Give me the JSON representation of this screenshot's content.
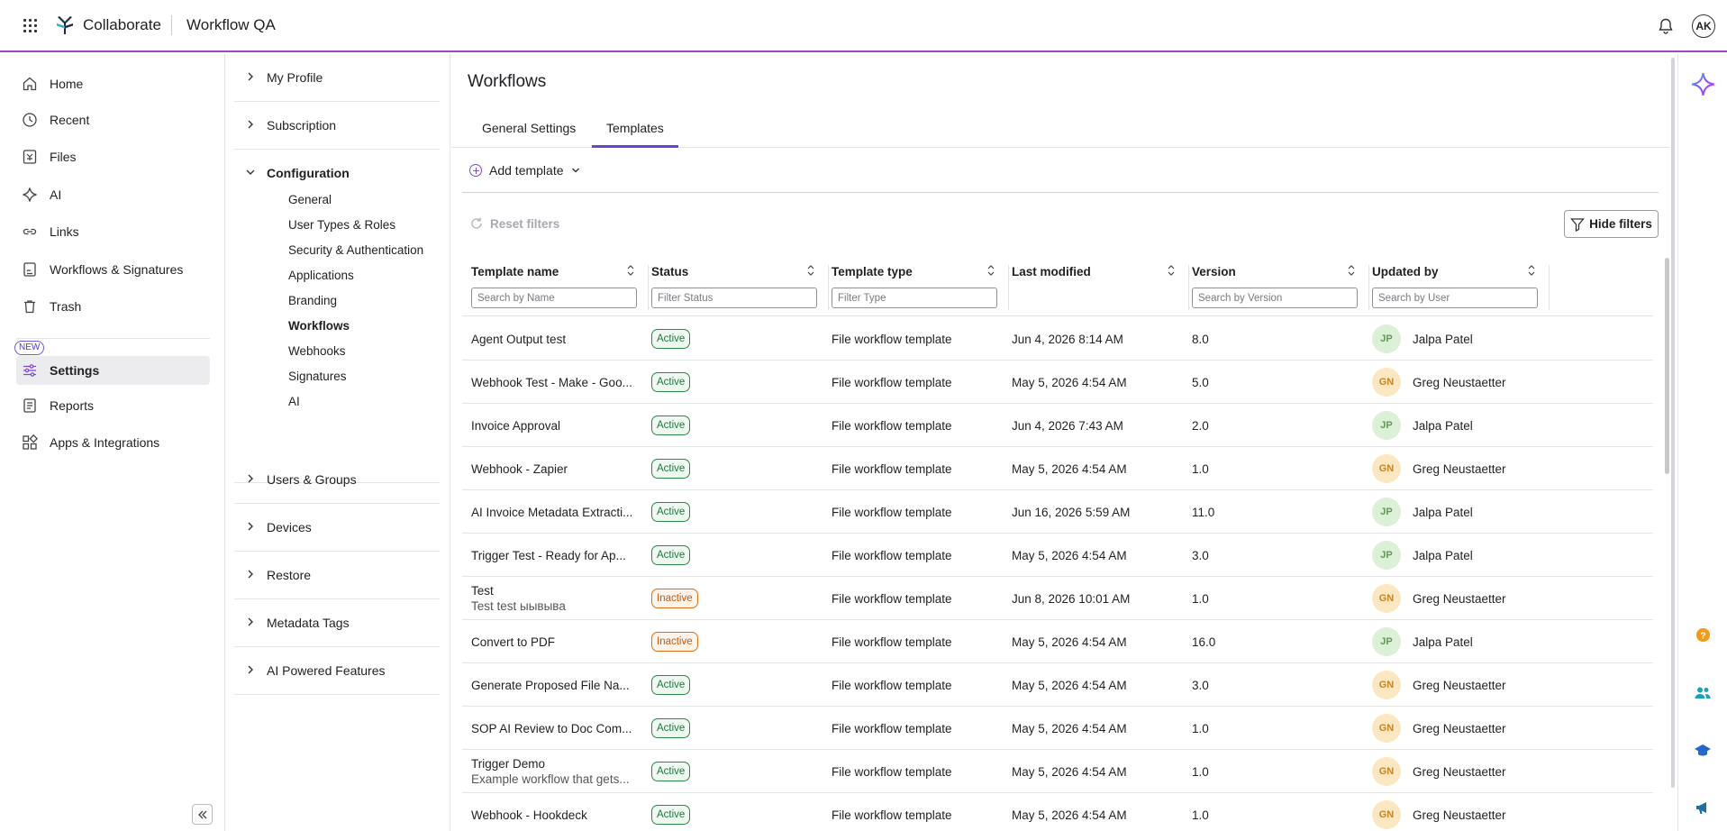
{
  "header": {
    "brand": "Collaborate",
    "workspace": "Workflow QA",
    "user_initials": "AK"
  },
  "leftnav": {
    "items": [
      {
        "label": "Home",
        "icon": "home-icon"
      },
      {
        "label": "Recent",
        "icon": "clock-icon"
      },
      {
        "label": "Files",
        "icon": "files-icon"
      },
      {
        "label": "AI",
        "icon": "sparkle-icon"
      },
      {
        "label": "Links",
        "icon": "link-icon"
      },
      {
        "label": "Workflows & Signatures",
        "icon": "workflow-icon"
      },
      {
        "label": "Trash",
        "icon": "trash-icon"
      },
      {
        "label": "Settings",
        "icon": "sliders-icon"
      },
      {
        "label": "Reports",
        "icon": "report-icon"
      },
      {
        "label": "Apps & Integrations",
        "icon": "apps-icon"
      }
    ],
    "new_badge": "NEW"
  },
  "subnav": {
    "sections": [
      {
        "label": "My Profile"
      },
      {
        "label": "Subscription"
      },
      {
        "label": "Configuration"
      },
      {
        "label": "Users & Groups"
      },
      {
        "label": "Devices"
      },
      {
        "label": "Restore"
      },
      {
        "label": "Metadata Tags"
      },
      {
        "label": "AI Powered Features"
      }
    ],
    "configuration_items": [
      "General",
      "User Types & Roles",
      "Security & Authentication",
      "Applications",
      "Branding",
      "Workflows",
      "Webhooks",
      "Signatures",
      "AI"
    ]
  },
  "main": {
    "title": "Workflows",
    "tabs": [
      "General Settings",
      "Templates"
    ],
    "add_template": "Add template",
    "reset_filters": "Reset filters",
    "hide_filters": "Hide filters"
  },
  "table": {
    "columns": [
      {
        "label": "Template name",
        "placeholder": "Search by Name"
      },
      {
        "label": "Status",
        "placeholder": "Filter Status"
      },
      {
        "label": "Template type",
        "placeholder": "Filter Type"
      },
      {
        "label": "Last modified",
        "placeholder": ""
      },
      {
        "label": "Version",
        "placeholder": "Search by Version"
      },
      {
        "label": "Updated by",
        "placeholder": "Search by User"
      }
    ],
    "rows": [
      {
        "name": "Agent Output test",
        "desc": "",
        "status": "Active",
        "type": "File workflow template",
        "modified": "Jun 4, 2026 8:14 AM",
        "version": "8.0",
        "initials": "JP",
        "user": "Jalpa Patel"
      },
      {
        "name": "Webhook Test - Make - Goo...",
        "desc": "",
        "status": "Active",
        "type": "File workflow template",
        "modified": "May 5, 2026 4:54 AM",
        "version": "5.0",
        "initials": "GN",
        "user": "Greg Neustaetter"
      },
      {
        "name": "Invoice Approval",
        "desc": "",
        "status": "Active",
        "type": "File workflow template",
        "modified": "Jun 4, 2026 7:43 AM",
        "version": "2.0",
        "initials": "JP",
        "user": "Jalpa Patel"
      },
      {
        "name": "Webhook - Zapier",
        "desc": "",
        "status": "Active",
        "type": "File workflow template",
        "modified": "May 5, 2026 4:54 AM",
        "version": "1.0",
        "initials": "GN",
        "user": "Greg Neustaetter"
      },
      {
        "name": "AI Invoice Metadata Extracti...",
        "desc": "",
        "status": "Active",
        "type": "File workflow template",
        "modified": "Jun 16, 2026 5:59 AM",
        "version": "11.0",
        "initials": "JP",
        "user": "Jalpa Patel"
      },
      {
        "name": "Trigger Test - Ready for Ap...",
        "desc": "",
        "status": "Active",
        "type": "File workflow template",
        "modified": "May 5, 2026 4:54 AM",
        "version": "3.0",
        "initials": "JP",
        "user": "Jalpa Patel"
      },
      {
        "name": "Test",
        "desc": "Test test ыывыва",
        "status": "Inactive",
        "type": "File workflow template",
        "modified": "Jun 8, 2026 10:01 AM",
        "version": "1.0",
        "initials": "GN",
        "user": "Greg Neustaetter"
      },
      {
        "name": "Convert to PDF",
        "desc": "",
        "status": "Inactive",
        "type": "File workflow template",
        "modified": "May 5, 2026 4:54 AM",
        "version": "16.0",
        "initials": "JP",
        "user": "Jalpa Patel"
      },
      {
        "name": "Generate Proposed File Na...",
        "desc": "",
        "status": "Active",
        "type": "File workflow template",
        "modified": "May 5, 2026 4:54 AM",
        "version": "3.0",
        "initials": "GN",
        "user": "Greg Neustaetter"
      },
      {
        "name": "SOP AI Review to Doc Com...",
        "desc": "",
        "status": "Active",
        "type": "File workflow template",
        "modified": "May 5, 2026 4:54 AM",
        "version": "1.0",
        "initials": "GN",
        "user": "Greg Neustaetter"
      },
      {
        "name": "Trigger Demo",
        "desc": "Example workflow that gets...",
        "status": "Active",
        "type": "File workflow template",
        "modified": "May 5, 2026 4:54 AM",
        "version": "1.0",
        "initials": "GN",
        "user": "Greg Neustaetter"
      },
      {
        "name": "Webhook - Hookdeck",
        "desc": "",
        "status": "Active",
        "type": "File workflow template",
        "modified": "May 5, 2026 4:54 AM",
        "version": "1.0",
        "initials": "GN",
        "user": "Greg Neustaetter"
      }
    ]
  },
  "colors": {
    "accent": "#9b45c9",
    "tab_underline": "#6e3fd6",
    "active_badge": "#2b8a47",
    "inactive_badge": "#d9701c"
  }
}
